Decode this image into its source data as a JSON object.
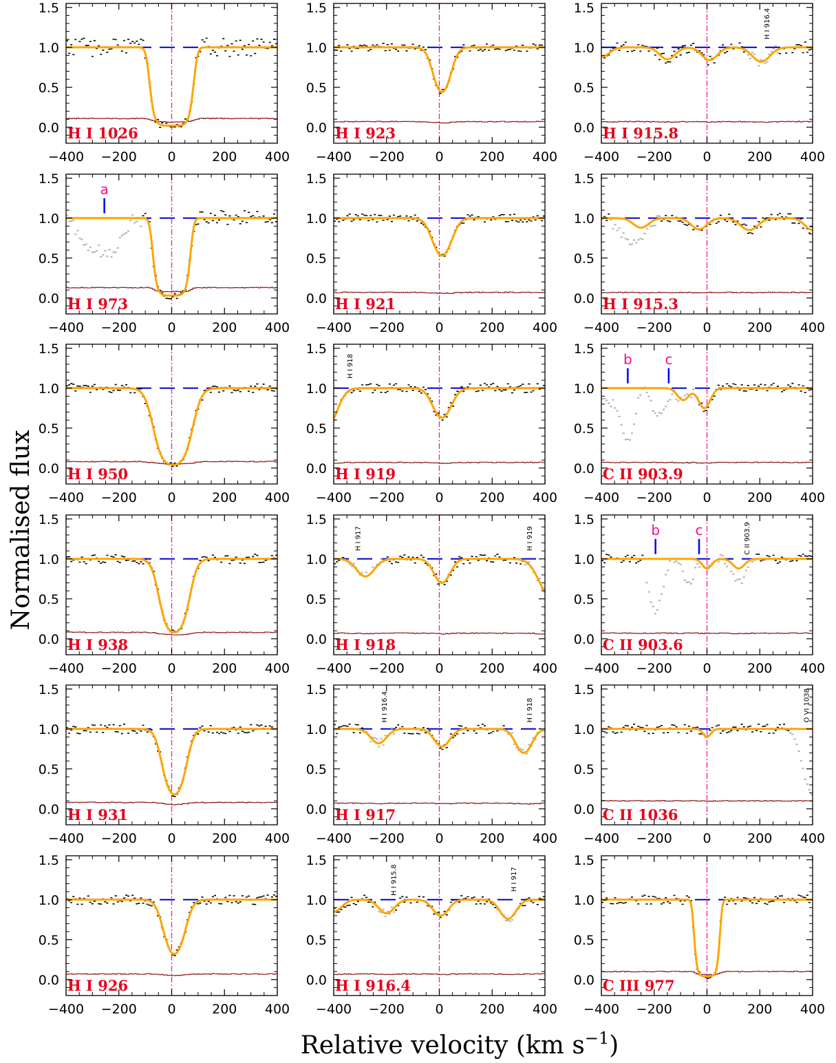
{
  "figure": {
    "xlabel": "Relative velocity (km s",
    "xlabel_sup": "−1",
    "xlabel_close": ")",
    "ylabel": "Normalised flux"
  },
  "chart_data": {
    "type": "line",
    "grid": false,
    "legend": "none",
    "xlim": [
      -400,
      400
    ],
    "ylim": [
      -0.2,
      1.55
    ],
    "xticks": [
      -400,
      -200,
      0,
      200,
      400
    ],
    "yticks": [
      0.0,
      0.5,
      1.0,
      1.5
    ],
    "xtick_labels": [
      "−400",
      "−200",
      "0",
      "200",
      "400"
    ],
    "ytick_labels": [
      "0.0",
      "0.5",
      "1.0",
      "1.5"
    ],
    "colors": {
      "data": "#000000",
      "blended": "#b0b0b0",
      "model": "#ffa500",
      "continuum": "#0000cc",
      "error": "#8b1a1a",
      "zero_line": "#ff1493",
      "label": "#e8001c",
      "marker_tick": "#0000ff",
      "marker_letter": "#ff0a8c"
    },
    "panels": [
      {
        "label": "H I 1026",
        "noise": 0.12,
        "err": 0.11,
        "components": [
          {
            "v": 0,
            "depth": 0.98,
            "b": 75,
            "shape": "flat"
          }
        ],
        "gray": [],
        "markers": [],
        "annotations": []
      },
      {
        "label": "H I 923",
        "noise": 0.05,
        "err": 0.07,
        "components": [
          {
            "v": 10,
            "depth": 0.56,
            "b": 40
          }
        ],
        "gray": [],
        "markers": [],
        "annotations": []
      },
      {
        "label": "H I 915.8",
        "noise": 0.07,
        "err": 0.07,
        "components": [
          {
            "v": -400,
            "depth": 0.12,
            "b": 40
          },
          {
            "v": -150,
            "depth": 0.15,
            "b": 40
          },
          {
            "v": 10,
            "depth": 0.16,
            "b": 40
          },
          {
            "v": 205,
            "depth": 0.18,
            "b": 45
          }
        ],
        "gray": [
          [
            150,
            270
          ]
        ],
        "markers": [],
        "annotations": [
          {
            "text": "H I 916.4",
            "v": 225,
            "y": 1.3
          }
        ]
      },
      {
        "label": "H I 973",
        "noise": 0.1,
        "err": 0.13,
        "components": [
          {
            "v": 0,
            "depth": 0.97,
            "b": 65,
            "shape": "flat"
          }
        ],
        "gray": [
          [
            -400,
            -110
          ]
        ],
        "gray_extra": [
          {
            "v": -245,
            "depth": 0.45,
            "b": 60
          },
          {
            "v": -330,
            "depth": 0.3,
            "b": 40
          }
        ],
        "markers": [
          {
            "letter": "a",
            "v": -255
          }
        ],
        "annotations": []
      },
      {
        "label": "H I 921",
        "noise": 0.05,
        "err": 0.07,
        "components": [
          {
            "v": 10,
            "depth": 0.47,
            "b": 45
          }
        ],
        "gray": [],
        "markers": [],
        "annotations": []
      },
      {
        "label": "H I 915.3",
        "noise": 0.06,
        "err": 0.07,
        "components": [
          {
            "v": -250,
            "depth": 0.12,
            "b": 40
          },
          {
            "v": -30,
            "depth": 0.14,
            "b": 40
          },
          {
            "v": 160,
            "depth": 0.15,
            "b": 45
          },
          {
            "v": 400,
            "depth": 0.15,
            "b": 40
          }
        ],
        "gray": [
          [
            -370,
            -180
          ]
        ],
        "gray_extra": [
          {
            "v": -290,
            "depth": 0.25,
            "b": 60
          }
        ],
        "markers": [],
        "annotations": []
      },
      {
        "label": "H I 950",
        "noise": 0.06,
        "err": 0.08,
        "components": [
          {
            "v": 5,
            "depth": 0.96,
            "b": 60
          }
        ],
        "gray": [],
        "markers": [],
        "annotations": []
      },
      {
        "label": "H I 919",
        "noise": 0.06,
        "err": 0.07,
        "components": [
          {
            "v": 10,
            "depth": 0.37,
            "b": 45
          },
          {
            "v": -430,
            "depth": 0.5,
            "b": 50
          }
        ],
        "gray": [
          [
            -400,
            -340
          ]
        ],
        "markers": [],
        "annotations": [
          {
            "text": "H I 918",
            "v": -340,
            "y": 1.32
          }
        ]
      },
      {
        "label": "C II 903.9",
        "noise": 0.06,
        "err": 0.07,
        "components": [
          {
            "v": -10,
            "depth": 0.25,
            "b": 30
          },
          {
            "v": -90,
            "depth": 0.15,
            "b": 30
          }
        ],
        "gray": [
          [
            -400,
            -30
          ]
        ],
        "gray_extra": [
          {
            "v": -300,
            "depth": 0.65,
            "b": 30
          },
          {
            "v": -180,
            "depth": 0.35,
            "b": 35
          },
          {
            "v": -370,
            "depth": 0.2,
            "b": 35
          }
        ],
        "markers": [
          {
            "letter": "b",
            "v": -300
          },
          {
            "letter": "c",
            "v": -145
          }
        ],
        "annotations": []
      },
      {
        "label": "H I 938",
        "noise": 0.06,
        "err": 0.08,
        "components": [
          {
            "v": 10,
            "depth": 0.92,
            "b": 50
          }
        ],
        "gray": [],
        "markers": [],
        "annotations": []
      },
      {
        "label": "H I 918",
        "noise": 0.06,
        "err": 0.07,
        "components": [
          {
            "v": 10,
            "depth": 0.3,
            "b": 40
          },
          {
            "v": -280,
            "depth": 0.22,
            "b": 45
          },
          {
            "v": 430,
            "depth": 0.5,
            "b": 60
          }
        ],
        "gray": [
          [
            -360,
            -210
          ],
          [
            320,
            400
          ]
        ],
        "markers": [],
        "annotations": [
          {
            "text": "H I 917",
            "v": -310,
            "y": 1.3
          },
          {
            "text": "H I 919",
            "v": 340,
            "y": 1.3
          }
        ]
      },
      {
        "label": "C II 903.6",
        "noise": 0.06,
        "err": 0.07,
        "components": [
          {
            "v": 0,
            "depth": 0.12,
            "b": 25
          },
          {
            "v": 120,
            "depth": 0.12,
            "b": 30
          }
        ],
        "gray": [
          [
            -230,
            180
          ]
        ],
        "gray_extra": [
          {
            "v": -195,
            "depth": 0.65,
            "b": 30
          },
          {
            "v": -70,
            "depth": 0.3,
            "b": 30
          },
          {
            "v": 120,
            "depth": 0.2,
            "b": 30
          }
        ],
        "markers": [
          {
            "letter": "b",
            "v": -195
          },
          {
            "letter": "c",
            "v": -30
          }
        ],
        "annotations": [
          {
            "text": "C II 903.9",
            "v": 150,
            "y": 1.25
          }
        ]
      },
      {
        "label": "H I 931",
        "noise": 0.06,
        "err": 0.08,
        "components": [
          {
            "v": 10,
            "depth": 0.82,
            "b": 45
          }
        ],
        "gray": [],
        "markers": [],
        "annotations": []
      },
      {
        "label": "H I 917",
        "noise": 0.06,
        "err": 0.07,
        "components": [
          {
            "v": 10,
            "depth": 0.22,
            "b": 40
          },
          {
            "v": -230,
            "depth": 0.18,
            "b": 40
          },
          {
            "v": 320,
            "depth": 0.3,
            "b": 40
          }
        ],
        "gray": [
          [
            -280,
            -170
          ],
          [
            260,
            400
          ]
        ],
        "markers": [],
        "annotations": [
          {
            "text": "H I 916.4",
            "v": -210,
            "y": 1.28
          },
          {
            "text": "H I 918",
            "v": 340,
            "y": 1.28
          }
        ]
      },
      {
        "label": "C II 1036",
        "noise": 0.06,
        "err": 0.1,
        "components": [
          {
            "v": 0,
            "depth": 0.1,
            "b": 20
          }
        ],
        "gray": [
          [
            310,
            400
          ]
        ],
        "gray_extra": [
          {
            "v": 400,
            "depth": 0.8,
            "b": 40
          }
        ],
        "markers": [],
        "annotations": [
          {
            "text": "O VI 1038",
            "v": 375,
            "y": 1.28
          }
        ]
      },
      {
        "label": "H I 926",
        "noise": 0.06,
        "err": 0.07,
        "components": [
          {
            "v": 10,
            "depth": 0.68,
            "b": 45
          }
        ],
        "gray": [],
        "markers": [],
        "annotations": []
      },
      {
        "label": "H I 916.4",
        "noise": 0.06,
        "err": 0.07,
        "components": [
          {
            "v": 5,
            "depth": 0.2,
            "b": 40
          },
          {
            "v": -400,
            "depth": 0.15,
            "b": 40
          },
          {
            "v": -200,
            "depth": 0.17,
            "b": 40
          },
          {
            "v": 260,
            "depth": 0.24,
            "b": 40
          }
        ],
        "gray": [
          [
            -240,
            -170
          ],
          [
            220,
            300
          ]
        ],
        "markers": [],
        "annotations": [
          {
            "text": "H I 915.8",
            "v": -175,
            "y": 1.25
          },
          {
            "text": "H I 917",
            "v": 280,
            "y": 1.3
          }
        ]
      },
      {
        "label": "C III 977",
        "noise": 0.06,
        "err": 0.1,
        "components": [
          {
            "v": 0,
            "depth": 0.96,
            "b": 45,
            "shape": "flat"
          }
        ],
        "gray": [],
        "markers": [],
        "annotations": []
      }
    ]
  }
}
